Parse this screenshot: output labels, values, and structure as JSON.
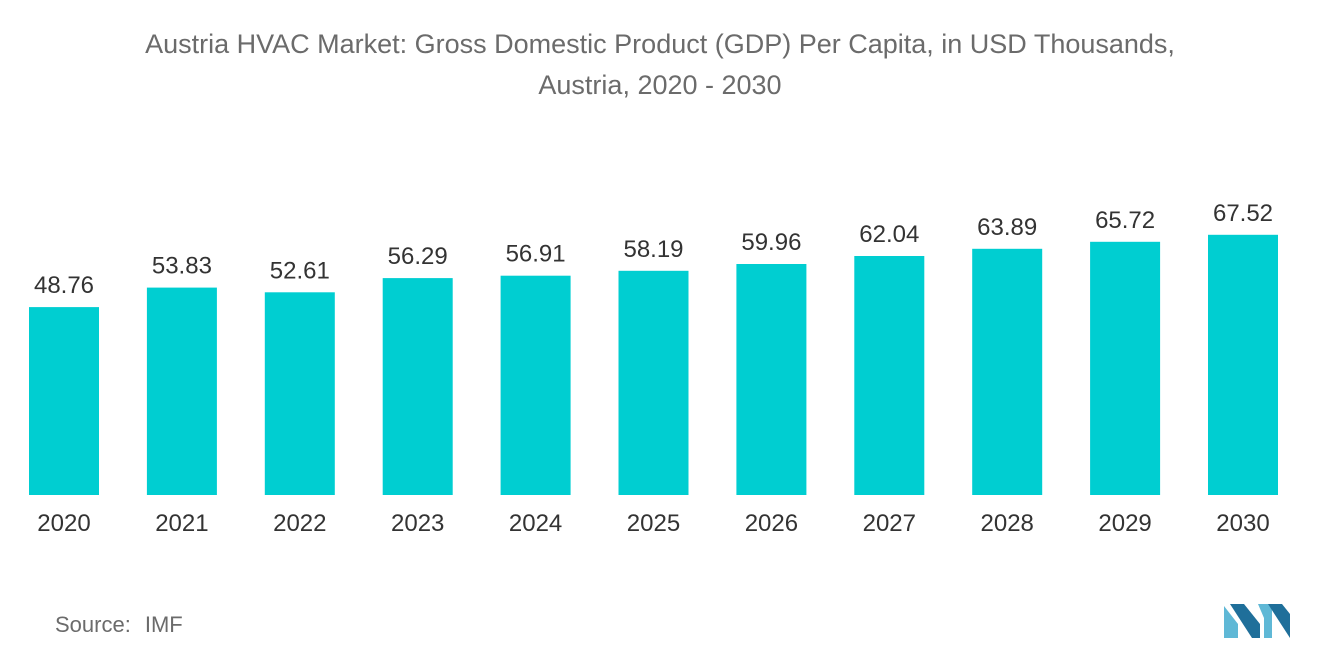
{
  "chart_data": {
    "type": "bar",
    "title_line1": "Austria HVAC Market: Gross Domestic Product (GDP) Per Capita, in USD Thousands,",
    "title_line2": "Austria, 2020 - 2030",
    "categories": [
      "2020",
      "2021",
      "2022",
      "2023",
      "2024",
      "2025",
      "2026",
      "2027",
      "2028",
      "2029",
      "2030"
    ],
    "values": [
      48.76,
      53.83,
      52.61,
      56.29,
      56.91,
      58.19,
      59.96,
      62.04,
      63.89,
      65.72,
      67.52
    ],
    "value_labels": [
      "48.76",
      "53.83",
      "52.61",
      "56.29",
      "56.91",
      "58.19",
      "59.96",
      "62.04",
      "63.89",
      "65.72",
      "67.52"
    ],
    "xlabel": "",
    "ylabel": "",
    "ylim": [
      0,
      68
    ],
    "grid": false,
    "bar_color": "#00CED1"
  },
  "footer": {
    "source_label": "Source:",
    "source_value": "IMF"
  },
  "logo": {
    "icon": "mordor-intelligence-logo-icon",
    "colors": [
      "#5fb8d6",
      "#1f6f9a"
    ]
  }
}
